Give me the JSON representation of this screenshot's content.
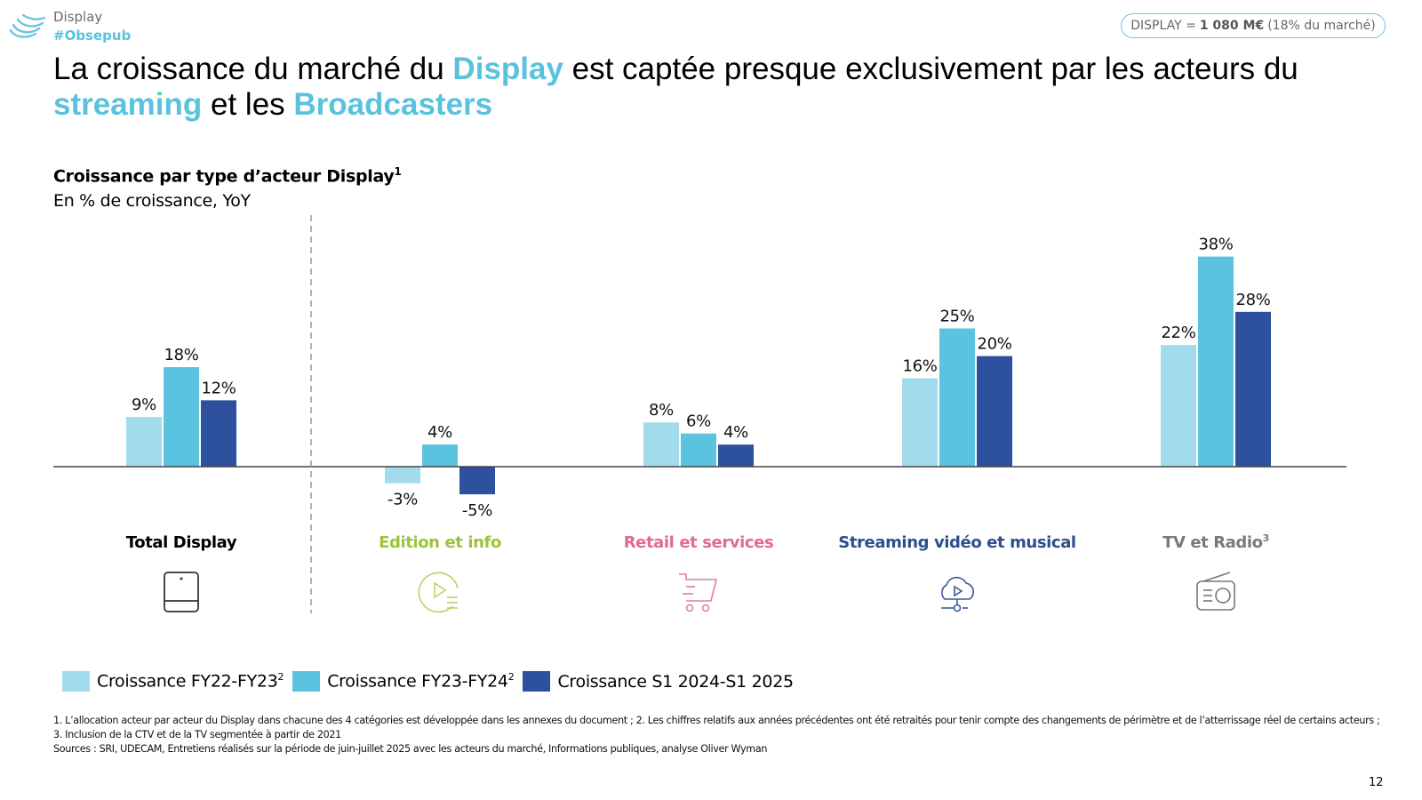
{
  "header": {
    "section": "Display",
    "hashtag": "#Obsepub",
    "logo_icon": "obsepub-waves-logo",
    "summary_pill": {
      "prefix": "DISPLAY = ",
      "value": "1 080 M€",
      "suffix": "(18% du marché)"
    }
  },
  "title": {
    "part1": "La croissance du marché du ",
    "highlight1": "Display",
    "part2": " est captée presque exclusivement par les acteurs du ",
    "highlight2": "streaming",
    "part3": " et les ",
    "highlight3": "Broadcasters"
  },
  "chart_header": {
    "title": "Croissance par type d’acteur Display",
    "title_footnote": "1",
    "subtitle": "En % de croissance, YoY"
  },
  "colors": {
    "highlight": "#5bc2dd",
    "series1": "#a2dcec",
    "series2": "#5bc2e0",
    "series3": "#2d519e",
    "cat_total": "#000000",
    "cat_edition": "#9cc33b",
    "cat_retail": "#e0689a",
    "cat_streaming": "#2d4e8e",
    "cat_tv": "#7a7a7a"
  },
  "chart_data": {
    "type": "bar",
    "title": "Croissance par type d’acteur Display",
    "subtitle": "En % de croissance, YoY",
    "xlabel": "",
    "ylabel": "",
    "ylim": [
      -6,
      40
    ],
    "grid": false,
    "legend_position": "bottom-left",
    "categories": [
      "Total Display",
      "Edition et info",
      "Retail et services",
      "Streaming vidéo et musical",
      "TV et Radio"
    ],
    "category_footnotes": [
      "",
      "",
      "",
      "",
      "3"
    ],
    "category_icons": [
      "tablet-icon",
      "play-list-icon",
      "shopping-cart-icon",
      "cloud-play-icon",
      "radio-icon"
    ],
    "category_colors_keys": [
      "cat_total",
      "cat_edition",
      "cat_retail",
      "cat_streaming",
      "cat_tv"
    ],
    "series": [
      {
        "name": "Croissance FY22-FY23",
        "footnote": "2",
        "color_key": "series1",
        "values": [
          9,
          -3,
          8,
          16,
          22
        ]
      },
      {
        "name": "Croissance FY23-FY24",
        "footnote": "2",
        "color_key": "series2",
        "values": [
          18,
          4,
          6,
          25,
          38
        ]
      },
      {
        "name": "Croissance S1 2024-S1 2025",
        "footnote": "",
        "color_key": "series3",
        "values": [
          12,
          -5,
          4,
          20,
          28
        ]
      }
    ],
    "value_suffix": "%",
    "separator_after_category": 0
  },
  "footnotes": {
    "line1": "1. L’allocation acteur par acteur du Display dans chacune des 4 catégories est développée dans les annexes du document ; 2. Les chiffres relatifs aux années précédentes ont été retraités pour tenir compte des changements de périmètre et de l’atterrissage réel de certains acteurs ; 3. Inclusion de la CTV et de la TV segmentée à partir de 2021",
    "sources": "Sources : SRI, UDECAM, Entretiens réalisés sur la période de juin-juillet 2025 avec les acteurs du marché, Informations publiques, analyse Oliver Wyman"
  },
  "page_number": "12"
}
